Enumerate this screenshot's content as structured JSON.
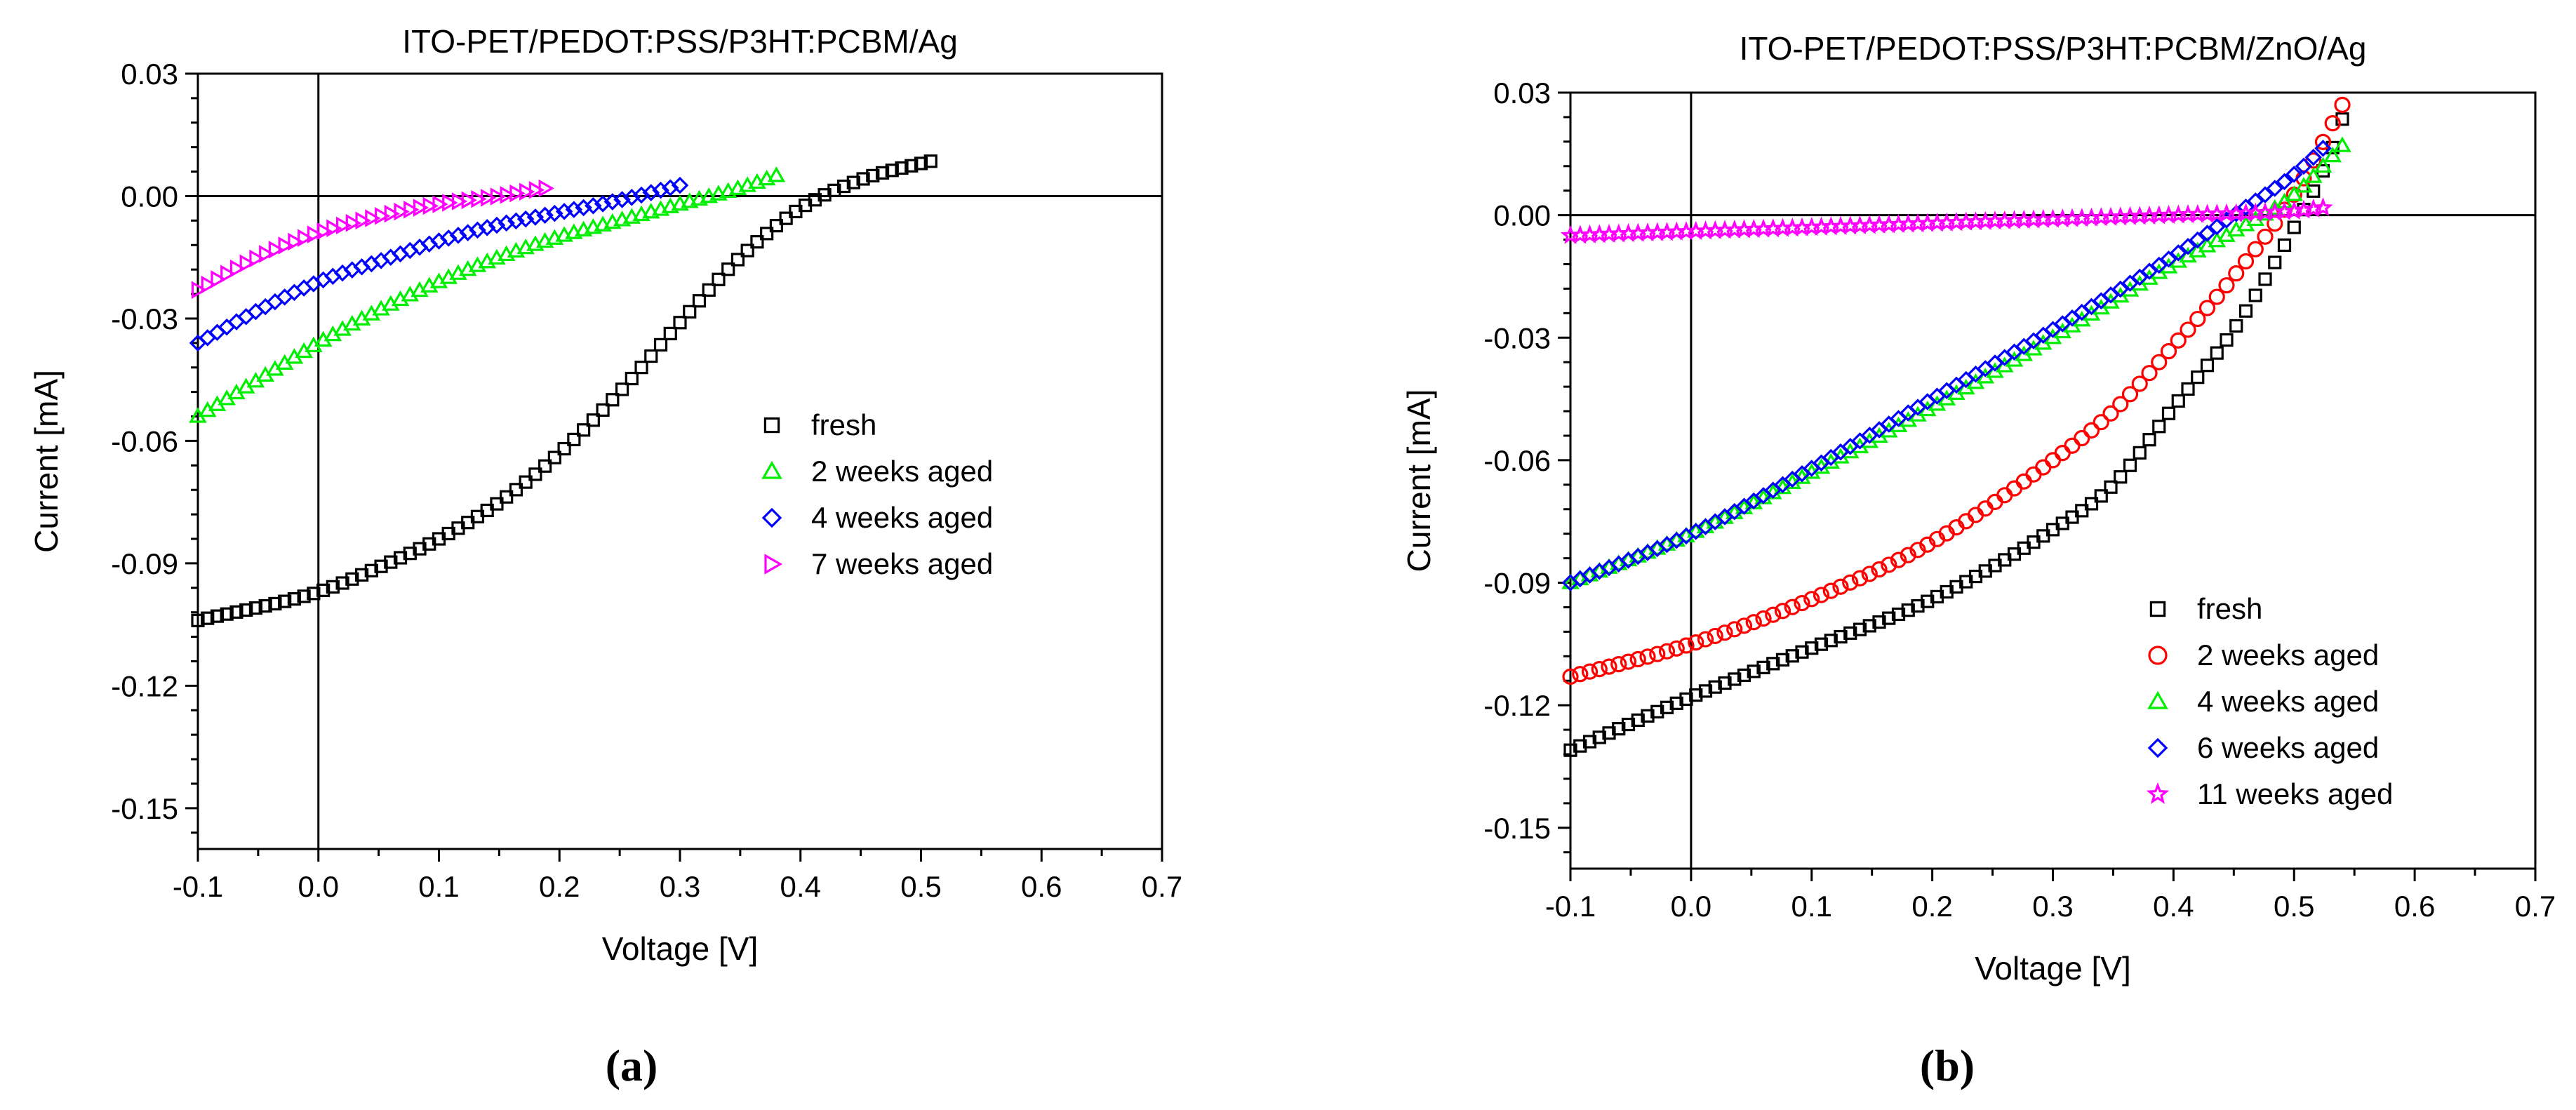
{
  "chart_data": [
    {
      "type": "scatter",
      "panel_label": "(a)",
      "title": "ITO-PET/PEDOT:PSS/P3HT:PCBM/Ag",
      "xlabel": "Voltage [V]",
      "ylabel": "Current [mA]",
      "xlim": [
        -0.1,
        0.7
      ],
      "ylim": [
        -0.16,
        0.03
      ],
      "xticks": [
        "-0.1",
        "0.0",
        "0.1",
        "0.2",
        "0.3",
        "0.4",
        "0.5",
        "0.6",
        "0.7"
      ],
      "yticks": [
        "0.03",
        "0.00",
        "-0.03",
        "-0.06",
        "-0.09",
        "-0.12",
        "-0.15"
      ],
      "legend_position": "center-right",
      "series": [
        {
          "name": "fresh",
          "marker": "square",
          "color": "#000000",
          "x_range": [
            -0.1,
            0.515
          ],
          "points": [
            [
              -0.1,
              -0.104
            ],
            [
              0.0,
              -0.097
            ],
            [
              0.05,
              -0.091
            ],
            [
              0.1,
              -0.084
            ],
            [
              0.15,
              -0.075
            ],
            [
              0.2,
              -0.063
            ],
            [
              0.25,
              -0.048
            ],
            [
              0.3,
              -0.031
            ],
            [
              0.35,
              -0.015
            ],
            [
              0.4,
              -0.003
            ],
            [
              0.45,
              0.004
            ],
            [
              0.5,
              0.008
            ],
            [
              0.515,
              0.009
            ]
          ]
        },
        {
          "name": "2 weeks aged",
          "marker": "triangle-up",
          "color": "#00ee00",
          "x_range": [
            -0.1,
            0.38
          ],
          "points": [
            [
              -0.1,
              -0.054
            ],
            [
              -0.05,
              -0.045
            ],
            [
              0.0,
              -0.036
            ],
            [
              0.05,
              -0.028
            ],
            [
              0.1,
              -0.021
            ],
            [
              0.15,
              -0.015
            ],
            [
              0.2,
              -0.01
            ],
            [
              0.25,
              -0.006
            ],
            [
              0.3,
              -0.002
            ],
            [
              0.35,
              0.002
            ],
            [
              0.38,
              0.005
            ]
          ]
        },
        {
          "name": "4 weeks aged",
          "marker": "diamond",
          "color": "#0000ff",
          "x_range": [
            -0.1,
            0.305
          ],
          "points": [
            [
              -0.1,
              -0.036
            ],
            [
              -0.05,
              -0.028
            ],
            [
              0.0,
              -0.021
            ],
            [
              0.05,
              -0.016
            ],
            [
              0.1,
              -0.011
            ],
            [
              0.15,
              -0.007
            ],
            [
              0.2,
              -0.004
            ],
            [
              0.25,
              -0.001
            ],
            [
              0.305,
              0.003
            ]
          ]
        },
        {
          "name": "7 weeks aged",
          "marker": "triangle-right",
          "color": "#ff00ff",
          "x_range": [
            -0.1,
            0.19
          ],
          "points": [
            [
              -0.1,
              -0.023
            ],
            [
              -0.05,
              -0.015
            ],
            [
              0.0,
              -0.009
            ],
            [
              0.05,
              -0.005
            ],
            [
              0.1,
              -0.002
            ],
            [
              0.15,
              0.0
            ],
            [
              0.19,
              0.002
            ]
          ]
        }
      ]
    },
    {
      "type": "scatter",
      "panel_label": "(b)",
      "title": "ITO-PET/PEDOT:PSS/P3HT:PCBM/ZnO/Ag",
      "xlabel": "Voltage [V]",
      "ylabel": "Current [mA]",
      "xlim": [
        -0.1,
        0.7
      ],
      "ylim": [
        -0.16,
        0.03
      ],
      "xticks": [
        "-0.1",
        "0.0",
        "0.1",
        "0.2",
        "0.3",
        "0.4",
        "0.5",
        "0.6",
        "0.7"
      ],
      "yticks": [
        "0.03",
        "0.00",
        "-0.03",
        "-0.06",
        "-0.09",
        "-0.12",
        "-0.15"
      ],
      "legend_position": "bottom-right",
      "series": [
        {
          "name": "fresh",
          "marker": "square",
          "color": "#000000",
          "x_range": [
            -0.1,
            0.545
          ],
          "points": [
            [
              -0.1,
              -0.131
            ],
            [
              0.0,
              -0.118
            ],
            [
              0.1,
              -0.106
            ],
            [
              0.2,
              -0.094
            ],
            [
              0.3,
              -0.077
            ],
            [
              0.35,
              -0.066
            ],
            [
              0.4,
              -0.047
            ],
            [
              0.45,
              -0.028
            ],
            [
              0.5,
              -0.003
            ],
            [
              0.53,
              0.015
            ],
            [
              0.545,
              0.028
            ]
          ]
        },
        {
          "name": "2 weeks aged",
          "marker": "circle",
          "color": "#ff0000",
          "x_range": [
            -0.1,
            0.54
          ],
          "points": [
            [
              -0.1,
              -0.113
            ],
            [
              0.0,
              -0.105
            ],
            [
              0.1,
              -0.094
            ],
            [
              0.2,
              -0.08
            ],
            [
              0.3,
              -0.06
            ],
            [
              0.35,
              -0.048
            ],
            [
              0.4,
              -0.032
            ],
            [
              0.45,
              -0.015
            ],
            [
              0.5,
              0.005
            ],
            [
              0.54,
              0.027
            ]
          ]
        },
        {
          "name": "4 weeks aged",
          "marker": "triangle-up",
          "color": "#00ee00",
          "x_range": [
            -0.1,
            0.54
          ],
          "points": [
            [
              -0.1,
              -0.09
            ],
            [
              0.0,
              -0.078
            ],
            [
              0.1,
              -0.063
            ],
            [
              0.2,
              -0.047
            ],
            [
              0.3,
              -0.03
            ],
            [
              0.4,
              -0.012
            ],
            [
              0.45,
              -0.004
            ],
            [
              0.5,
              0.005
            ],
            [
              0.54,
              0.017
            ]
          ]
        },
        {
          "name": "6 weeks aged",
          "marker": "diamond",
          "color": "#0000ff",
          "x_range": [
            -0.1,
            0.53
          ],
          "points": [
            [
              -0.1,
              -0.09
            ],
            [
              0.0,
              -0.078
            ],
            [
              0.1,
              -0.062
            ],
            [
              0.2,
              -0.045
            ],
            [
              0.3,
              -0.028
            ],
            [
              0.4,
              -0.01
            ],
            [
              0.45,
              0.0
            ],
            [
              0.5,
              0.01
            ],
            [
              0.53,
              0.018
            ]
          ]
        },
        {
          "name": "11 weeks aged",
          "marker": "star",
          "color": "#ff00ff",
          "x_range": [
            -0.1,
            0.53
          ],
          "points": [
            [
              -0.1,
              -0.005
            ],
            [
              0.0,
              -0.004
            ],
            [
              0.1,
              -0.003
            ],
            [
              0.2,
              -0.002
            ],
            [
              0.3,
              -0.001
            ],
            [
              0.4,
              0.0
            ],
            [
              0.5,
              0.001
            ],
            [
              0.53,
              0.002
            ]
          ]
        }
      ]
    }
  ]
}
